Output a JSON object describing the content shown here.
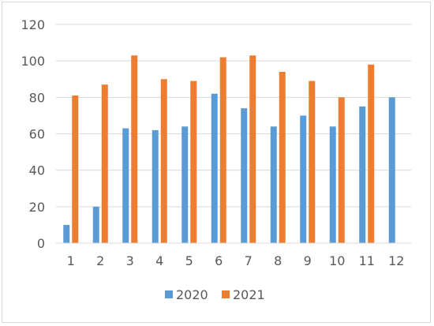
{
  "chart_data": {
    "type": "bar",
    "title": "",
    "xlabel": "",
    "ylabel": "",
    "categories": [
      "1",
      "2",
      "3",
      "4",
      "5",
      "6",
      "7",
      "8",
      "9",
      "10",
      "11",
      "12"
    ],
    "series": [
      {
        "name": "2020",
        "color": "#5b9bd5",
        "values": [
          10,
          20,
          63,
          62,
          64,
          82,
          74,
          64,
          70,
          64,
          75,
          80
        ]
      },
      {
        "name": "2021",
        "color": "#ed7d31",
        "values": [
          81,
          87,
          103,
          90,
          89,
          102,
          103,
          94,
          89,
          80,
          98,
          null
        ]
      }
    ],
    "ylim": [
      0,
      120
    ],
    "yticks": [
      0,
      20,
      40,
      60,
      80,
      100,
      120
    ],
    "grid": true,
    "legend_position": "bottom"
  }
}
